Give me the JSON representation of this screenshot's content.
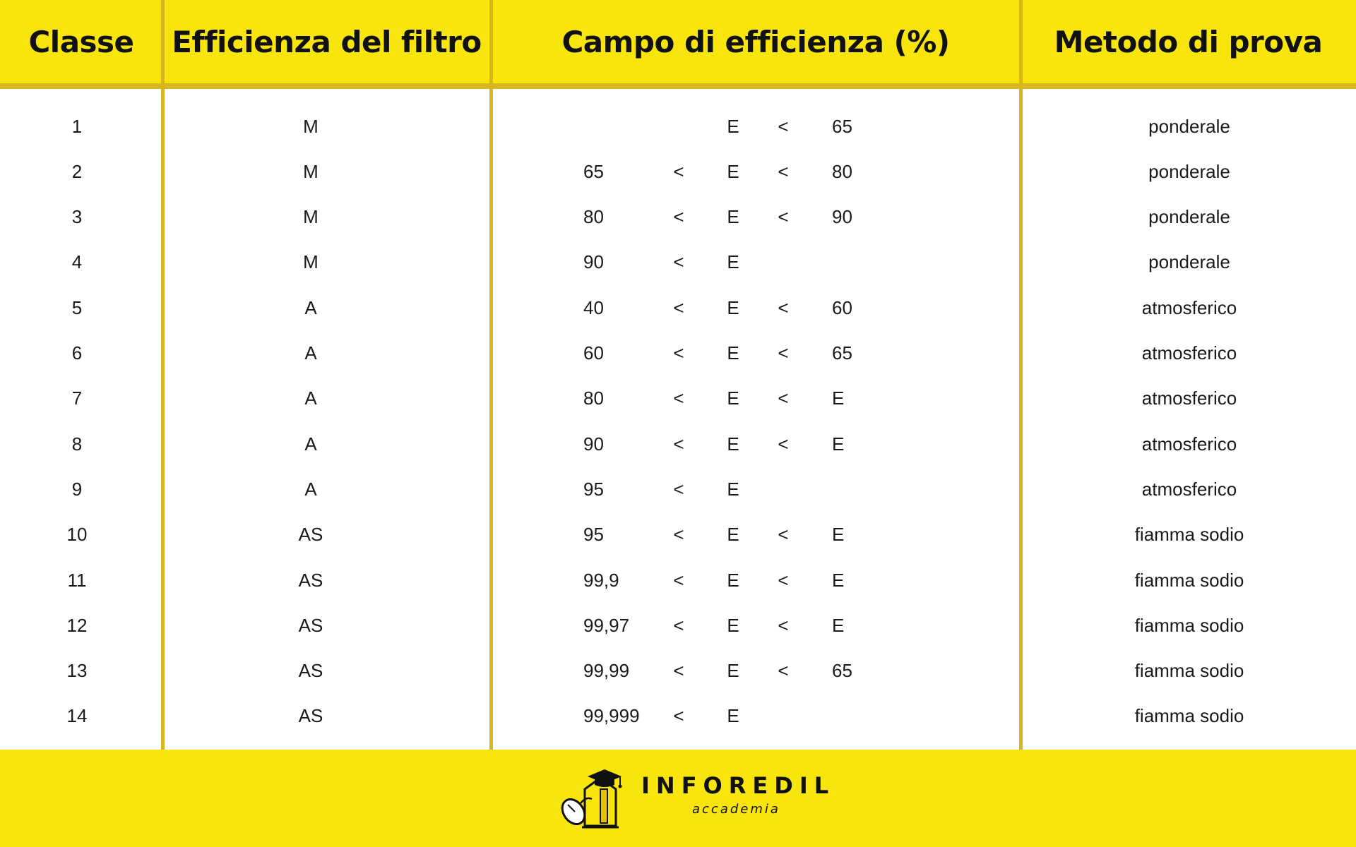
{
  "header": {
    "col_classe": "Classe",
    "col_efficienza": "Efficienza del filtro",
    "col_campo": "Campo di efficienza (%)",
    "col_metodo": "Metodo di prova"
  },
  "rows": [
    {
      "classe": "1",
      "filtro": "M",
      "min": "",
      "op1": "",
      "e": "E",
      "op2": "<",
      "max": "65",
      "metodo": "ponderale"
    },
    {
      "classe": "2",
      "filtro": "M",
      "min": "65",
      "op1": "<",
      "e": "E",
      "op2": "<",
      "max": "80",
      "metodo": "ponderale"
    },
    {
      "classe": "3",
      "filtro": "M",
      "min": "80",
      "op1": "<",
      "e": "E",
      "op2": "<",
      "max": "90",
      "metodo": "ponderale"
    },
    {
      "classe": "4",
      "filtro": "M",
      "min": "90",
      "op1": "<",
      "e": "E",
      "op2": "",
      "max": "",
      "metodo": "ponderale"
    },
    {
      "classe": "5",
      "filtro": "A",
      "min": "40",
      "op1": "<",
      "e": "E",
      "op2": "<",
      "max": "60",
      "metodo": "atmosferico"
    },
    {
      "classe": "6",
      "filtro": "A",
      "min": "60",
      "op1": "<",
      "e": "E",
      "op2": "<",
      "max": "65",
      "metodo": "atmosferico"
    },
    {
      "classe": "7",
      "filtro": "A",
      "min": "80",
      "op1": "<",
      "e": "E",
      "op2": "<",
      "max": "E",
      "metodo": "atmosferico"
    },
    {
      "classe": "8",
      "filtro": "A",
      "min": "90",
      "op1": "<",
      "e": "E",
      "op2": "<",
      "max": "E",
      "metodo": "atmosferico"
    },
    {
      "classe": "9",
      "filtro": "A",
      "min": "95",
      "op1": "<",
      "e": "E",
      "op2": "",
      "max": "",
      "metodo": "atmosferico"
    },
    {
      "classe": "10",
      "filtro": "AS",
      "min": "95",
      "op1": "<",
      "e": "E",
      "op2": "<",
      "max": "E",
      "metodo": "fiamma sodio"
    },
    {
      "classe": "11",
      "filtro": "AS",
      "min": "99,9",
      "op1": "<",
      "e": "E",
      "op2": "<",
      "max": "E",
      "metodo": "fiamma sodio"
    },
    {
      "classe": "12",
      "filtro": "AS",
      "min": "99,97",
      "op1": "<",
      "e": "E",
      "op2": "<",
      "max": "E",
      "metodo": "fiamma sodio"
    },
    {
      "classe": "13",
      "filtro": "AS",
      "min": "99,99",
      "op1": "<",
      "e": "E",
      "op2": "<",
      "max": "65",
      "metodo": "fiamma sodio"
    },
    {
      "classe": "14",
      "filtro": "AS",
      "min": "99,999",
      "op1": "<",
      "e": "E",
      "op2": "",
      "max": "",
      "metodo": "fiamma sodio"
    }
  ],
  "footer": {
    "brand": "INFOREDIL",
    "tagline": "accademia",
    "logo_icon": "graduation-cap-house-mouse-icon"
  },
  "colors": {
    "header_bg": "#f7e50d",
    "divider": "#d8b61f",
    "text": "#1a1a1a"
  }
}
